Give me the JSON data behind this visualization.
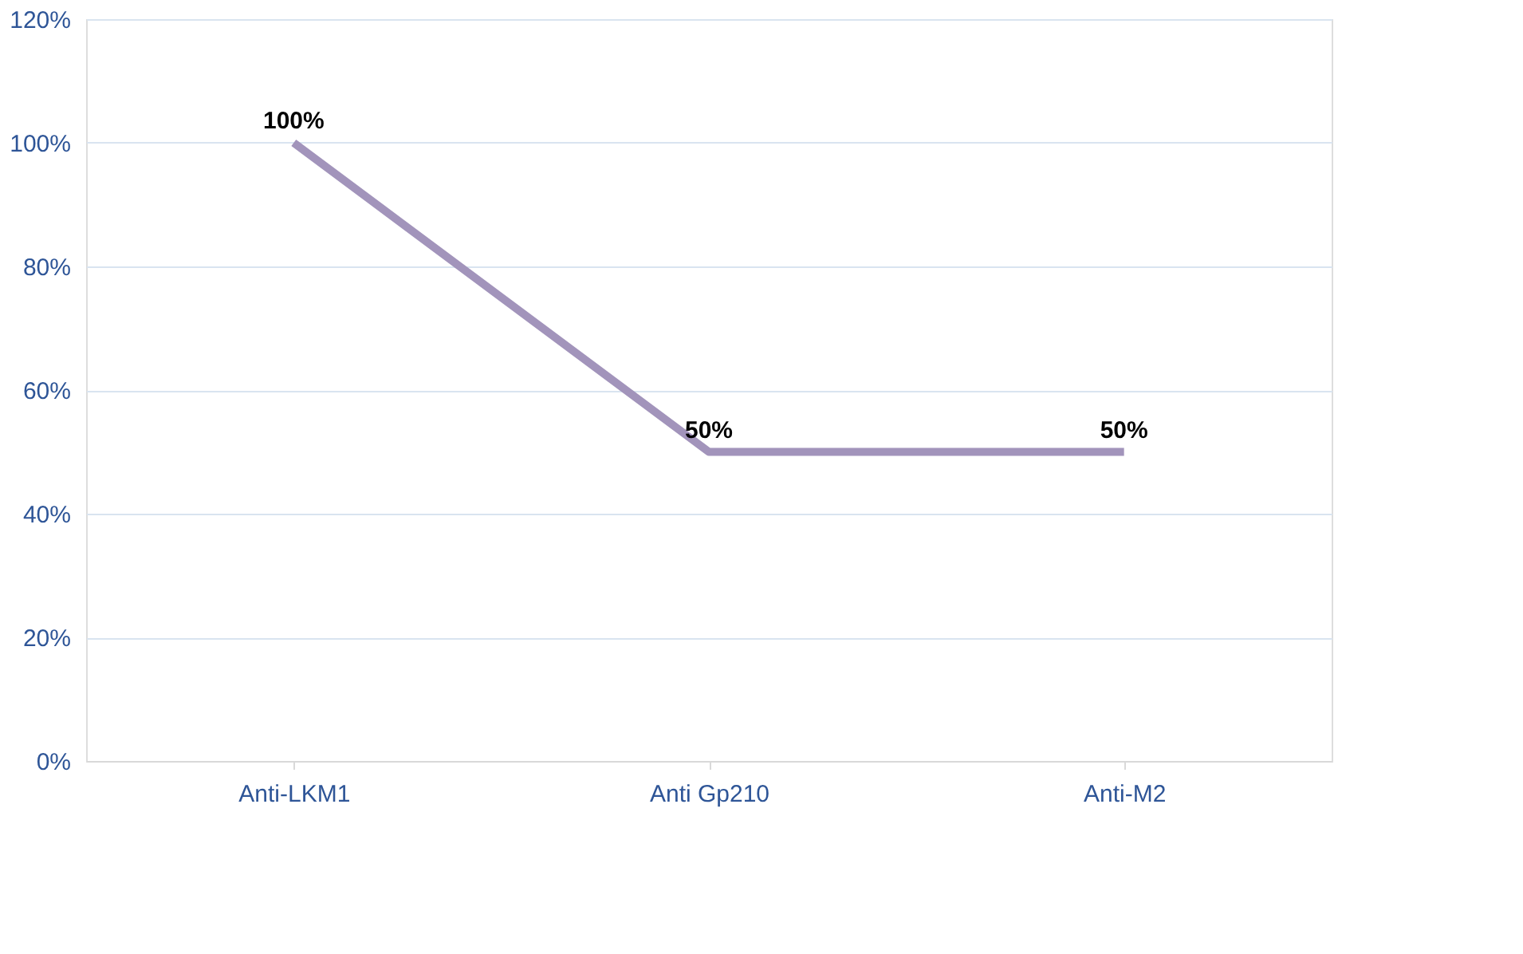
{
  "chart_data": {
    "type": "line",
    "categories": [
      "Anti-LKM1",
      "Anti Gp210",
      "Anti-M2"
    ],
    "series": [
      {
        "color": "#a294bb",
        "values": [
          100,
          50,
          50
        ],
        "value_labels": [
          "100%",
          "50%",
          "50%"
        ]
      }
    ],
    "ylim": [
      0,
      120
    ],
    "yticks": [
      {
        "value": 0,
        "label": "0%"
      },
      {
        "value": 20,
        "label": "20%"
      },
      {
        "value": 40,
        "label": "40%"
      },
      {
        "value": 60,
        "label": "60%"
      },
      {
        "value": 80,
        "label": "80%"
      },
      {
        "value": 100,
        "label": "100%"
      },
      {
        "value": 120,
        "label": "120%"
      }
    ],
    "grid": "y",
    "marker": "none",
    "line_style": "solid"
  }
}
